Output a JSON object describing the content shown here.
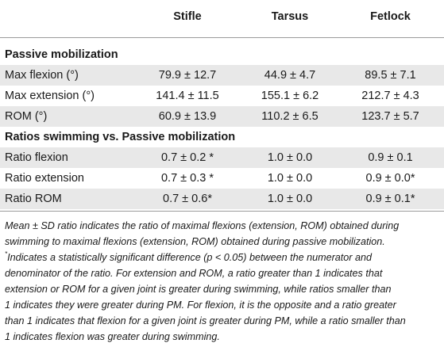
{
  "table": {
    "columns": [
      "",
      "Stifle",
      "Tarsus",
      "Fetlock"
    ],
    "sections": [
      {
        "title": "Passive mobilization",
        "rows": [
          {
            "label": "Max flexion (°)",
            "stifle": "79.9 ± 12.7",
            "tarsus": "44.9 ± 4.7",
            "fetlock": "89.5 ± 7.1"
          },
          {
            "label": "Max extension (°)",
            "stifle": "141.4 ± 11.5",
            "tarsus": "155.1 ± 6.2",
            "fetlock": "212.7 ± 4.3"
          },
          {
            "label": "ROM (°)",
            "stifle": "60.9 ± 13.9",
            "tarsus": "110.2 ± 6.5",
            "fetlock": "123.7 ± 5.7"
          }
        ]
      },
      {
        "title": "Ratios swimming vs. Passive mobilization",
        "rows": [
          {
            "label": "Ratio flexion",
            "stifle": "0.7 ± 0.2 *",
            "tarsus": "1.0 ± 0.0",
            "fetlock": "0.9 ± 0.1"
          },
          {
            "label": "Ratio extension",
            "stifle": "0.7 ± 0.3 *",
            "tarsus": "1.0 ± 0.0",
            "fetlock": "0.9 ± 0.0*"
          },
          {
            "label": "Ratio ROM",
            "stifle": "0.7 ± 0.6*",
            "tarsus": "1.0 ± 0.0",
            "fetlock": "0.9 ± 0.1*"
          }
        ]
      }
    ]
  },
  "footnote": {
    "line1": "Mean ± SD ratio indicates the ratio of maximal flexions (extension, ROM) obtained during",
    "line2": "swimming to maximal flexions (extension, ROM) obtained during passive mobilization.",
    "star": "*",
    "line3": "Indicates a statistically significant difference (p < 0.05) between the numerator and",
    "line4": "denominator of the ratio. For extension and ROM, a ratio greater than 1 indicates that",
    "line5": "extension or ROM for a given joint is greater during swimming, while ratios smaller than",
    "line6": "1 indicates they were greater during PM. For flexion, it is the opposite and a ratio greater",
    "line7": "than 1 indicates that flexion for a given joint is greater during PM, while a ratio smaller than",
    "line8": "1 indicates flexion was greater during swimming."
  }
}
